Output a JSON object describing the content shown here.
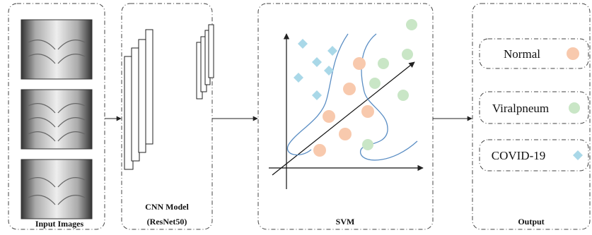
{
  "panels": {
    "input": {
      "label": "Input Images"
    },
    "cnn": {
      "label": "CNN Model",
      "sublabel": "(ResNet50)"
    },
    "svm": {
      "label": "SVM"
    },
    "output": {
      "label": "Output",
      "classes": [
        "Normal",
        "Viralpneum",
        "COVID-19"
      ]
    }
  }
}
